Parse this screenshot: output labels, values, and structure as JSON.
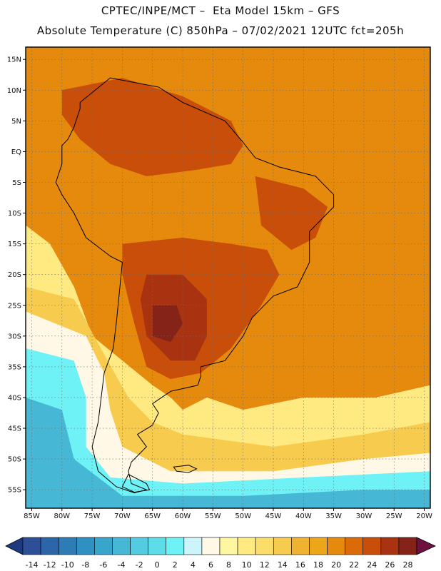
{
  "title_line1": "CPTEC/INPE/MCT –  Eta Model 15km – GFS",
  "title_line2": "Absolute Temperature (C) 850hPa – 07/02/2021 12UTC fct=205h",
  "map": {
    "lon_range": [
      -86,
      -19
    ],
    "lat_range": [
      -58,
      17
    ],
    "lat_ticks": [
      {
        "value": 15,
        "label": "15N"
      },
      {
        "value": 10,
        "label": "10N"
      },
      {
        "value": 5,
        "label": "5N"
      },
      {
        "value": 0,
        "label": "EQ"
      },
      {
        "value": -5,
        "label": "5S"
      },
      {
        "value": -10,
        "label": "10S"
      },
      {
        "value": -15,
        "label": "15S"
      },
      {
        "value": -20,
        "label": "20S"
      },
      {
        "value": -25,
        "label": "25S"
      },
      {
        "value": -30,
        "label": "30S"
      },
      {
        "value": -35,
        "label": "35S"
      },
      {
        "value": -40,
        "label": "40S"
      },
      {
        "value": -45,
        "label": "45S"
      },
      {
        "value": -50,
        "label": "50S"
      },
      {
        "value": -55,
        "label": "55S"
      }
    ],
    "lon_ticks": [
      {
        "value": -85,
        "label": "85W"
      },
      {
        "value": -80,
        "label": "80W"
      },
      {
        "value": -75,
        "label": "75W"
      },
      {
        "value": -70,
        "label": "70W"
      },
      {
        "value": -65,
        "label": "65W"
      },
      {
        "value": -60,
        "label": "60W"
      },
      {
        "value": -55,
        "label": "55W"
      },
      {
        "value": -50,
        "label": "50W"
      },
      {
        "value": -45,
        "label": "45W"
      },
      {
        "value": -40,
        "label": "40W"
      },
      {
        "value": -35,
        "label": "35W"
      },
      {
        "value": -30,
        "label": "30W"
      },
      {
        "value": -25,
        "label": "25W"
      },
      {
        "value": -20,
        "label": "20W"
      }
    ],
    "field_regions": [
      {
        "name": "sea-22-24",
        "value": 20,
        "points": [
          [
            -86,
            17
          ],
          [
            -19,
            17
          ],
          [
            -19,
            -38
          ],
          [
            -28,
            -40
          ],
          [
            -40,
            -40
          ],
          [
            -50,
            -42
          ],
          [
            -56,
            -40
          ],
          [
            -60,
            -42
          ],
          [
            -62,
            -40
          ],
          [
            -65,
            -38
          ],
          [
            -70,
            -34
          ],
          [
            -75,
            -30
          ],
          [
            -78,
            -22
          ],
          [
            -82,
            -15
          ],
          [
            -86,
            -12
          ]
        ]
      },
      {
        "name": "north-warm",
        "value": 24,
        "points": [
          [
            -80,
            10
          ],
          [
            -70,
            12
          ],
          [
            -60,
            9
          ],
          [
            -52,
            5
          ],
          [
            -50,
            1
          ],
          [
            -52,
            -2
          ],
          [
            -58,
            -3
          ],
          [
            -66,
            -4
          ],
          [
            -72,
            -2
          ],
          [
            -77,
            2
          ],
          [
            -80,
            6
          ]
        ]
      },
      {
        "name": "east-hot",
        "value": 24,
        "points": [
          [
            -48,
            -4
          ],
          [
            -40,
            -6
          ],
          [
            -36,
            -9
          ],
          [
            -38,
            -14
          ],
          [
            -42,
            -16
          ],
          [
            -47,
            -12
          ]
        ]
      },
      {
        "name": "center-hot",
        "value": 24,
        "points": [
          [
            -70,
            -15
          ],
          [
            -60,
            -14
          ],
          [
            -52,
            -15
          ],
          [
            -46,
            -16
          ],
          [
            -44,
            -20
          ],
          [
            -47,
            -25
          ],
          [
            -52,
            -32
          ],
          [
            -57,
            -36
          ],
          [
            -62,
            -37
          ],
          [
            -66,
            -35
          ],
          [
            -68,
            -28
          ],
          [
            -70,
            -20
          ]
        ]
      },
      {
        "name": "chaco-very-hot",
        "value": 26,
        "points": [
          [
            -66,
            -20
          ],
          [
            -60,
            -20
          ],
          [
            -56,
            -24
          ],
          [
            -56,
            -30
          ],
          [
            -58,
            -34
          ],
          [
            -62,
            -34
          ],
          [
            -66,
            -30
          ],
          [
            -67,
            -24
          ]
        ]
      },
      {
        "name": "chaco-core",
        "value": 28,
        "points": [
          [
            -65,
            -25
          ],
          [
            -61,
            -25
          ],
          [
            -60,
            -28
          ],
          [
            -62,
            -31
          ],
          [
            -65,
            -30
          ]
        ]
      },
      {
        "name": "sea-cool-east",
        "value": 8,
        "points": [
          [
            -36,
            -42
          ],
          [
            -25,
            -40
          ],
          [
            -19,
            -40
          ],
          [
            -19,
            -47
          ],
          [
            -30,
            -47
          ],
          [
            -40,
            -45
          ]
        ]
      },
      {
        "name": "south-cool",
        "value": 10,
        "points": [
          [
            -86,
            -12
          ],
          [
            -82,
            -15
          ],
          [
            -78,
            -22
          ],
          [
            -75,
            -30
          ],
          [
            -70,
            -34
          ],
          [
            -65,
            -38
          ],
          [
            -62,
            -40
          ],
          [
            -60,
            -42
          ],
          [
            -56,
            -40
          ],
          [
            -50,
            -42
          ],
          [
            -40,
            -40
          ],
          [
            -28,
            -40
          ],
          [
            -19,
            -38
          ],
          [
            -19,
            -58
          ],
          [
            -86,
            -58
          ]
        ]
      },
      {
        "name": "cool-14",
        "value": 14,
        "points": [
          [
            -86,
            -22
          ],
          [
            -78,
            -24
          ],
          [
            -73,
            -33
          ],
          [
            -69,
            -40
          ],
          [
            -65,
            -44
          ],
          [
            -60,
            -46
          ],
          [
            -45,
            -48
          ],
          [
            -30,
            -46
          ],
          [
            -19,
            -44
          ],
          [
            -19,
            -58
          ],
          [
            -86,
            -58
          ]
        ]
      },
      {
        "name": "cold-6",
        "value": 6,
        "points": [
          [
            -86,
            -26
          ],
          [
            -76,
            -30
          ],
          [
            -73,
            -36
          ],
          [
            -72,
            -42
          ],
          [
            -70,
            -48
          ],
          [
            -62,
            -52
          ],
          [
            -45,
            -52
          ],
          [
            -30,
            -50
          ],
          [
            -19,
            -49
          ],
          [
            -19,
            -58
          ],
          [
            -86,
            -58
          ]
        ]
      },
      {
        "name": "cold-2",
        "value": 2,
        "points": [
          [
            -86,
            -32
          ],
          [
            -78,
            -34
          ],
          [
            -76,
            -40
          ],
          [
            -76,
            -48
          ],
          [
            -72,
            -53
          ],
          [
            -60,
            -54
          ],
          [
            -40,
            -53
          ],
          [
            -19,
            -52
          ],
          [
            -19,
            -58
          ],
          [
            -86,
            -58
          ]
        ]
      },
      {
        "name": "cold-minus2",
        "value": -4,
        "points": [
          [
            -86,
            -40
          ],
          [
            -80,
            -42
          ],
          [
            -78,
            -50
          ],
          [
            -70,
            -56
          ],
          [
            -50,
            -56
          ],
          [
            -30,
            -55
          ],
          [
            -19,
            -55
          ],
          [
            -19,
            -58
          ],
          [
            -86,
            -58
          ]
        ]
      }
    ],
    "coast_points": [
      [
        -77,
        8
      ],
      [
        -72,
        12
      ],
      [
        -64,
        10.5
      ],
      [
        -60,
        8
      ],
      [
        -53,
        5
      ],
      [
        -50,
        1.5
      ],
      [
        -48,
        -1
      ],
      [
        -44,
        -2.5
      ],
      [
        -38,
        -4
      ],
      [
        -35,
        -7
      ],
      [
        -35,
        -9
      ],
      [
        -39,
        -13
      ],
      [
        -39,
        -18
      ],
      [
        -41,
        -22
      ],
      [
        -45,
        -23.5
      ],
      [
        -48.5,
        -27
      ],
      [
        -50,
        -30
      ],
      [
        -53,
        -34
      ],
      [
        -57,
        -35
      ],
      [
        -57,
        -36.5
      ],
      [
        -57.5,
        -38
      ],
      [
        -62,
        -39
      ],
      [
        -65,
        -41
      ],
      [
        -64,
        -42.5
      ],
      [
        -65,
        -44.5
      ],
      [
        -67.5,
        -46
      ],
      [
        -66,
        -48
      ],
      [
        -68.5,
        -50.5
      ],
      [
        -69,
        -52
      ],
      [
        -68.5,
        -54
      ],
      [
        -66,
        -55
      ],
      [
        -68,
        -55.5
      ],
      [
        -71,
        -54.5
      ],
      [
        -74,
        -52
      ],
      [
        -75,
        -48
      ],
      [
        -74,
        -44
      ],
      [
        -73.5,
        -40
      ],
      [
        -73,
        -36
      ],
      [
        -71.5,
        -32
      ],
      [
        -71,
        -28
      ],
      [
        -70.5,
        -23
      ],
      [
        -70,
        -18
      ],
      [
        -72,
        -17
      ],
      [
        -76,
        -14
      ],
      [
        -78,
        -10
      ],
      [
        -80,
        -7
      ],
      [
        -81,
        -5
      ],
      [
        -80,
        -2
      ],
      [
        -80,
        1
      ],
      [
        -79,
        2
      ],
      [
        -78,
        4
      ],
      [
        -77,
        7
      ],
      [
        -77,
        8
      ]
    ],
    "islands": [
      {
        "name": "falklands",
        "points": [
          [
            -61.5,
            -51.3
          ],
          [
            -59,
            -51
          ],
          [
            -57.7,
            -51.6
          ],
          [
            -59,
            -52.2
          ],
          [
            -61,
            -52
          ]
        ]
      },
      {
        "name": "tierra-del-fuego",
        "points": [
          [
            -69,
            -52.5
          ],
          [
            -66,
            -54
          ],
          [
            -65.5,
            -55
          ],
          [
            -68,
            -55.4
          ],
          [
            -70,
            -54.5
          ]
        ]
      }
    ]
  },
  "colorbar": {
    "labels": [
      "-14",
      "-12",
      "-10",
      "-8",
      "-6",
      "-4",
      "-2",
      "0",
      "2",
      "4",
      "6",
      "8",
      "10",
      "12",
      "14",
      "16",
      "18",
      "20",
      "22",
      "24",
      "26",
      "28"
    ],
    "colors": [
      "#2d4f98",
      "#2c66a8",
      "#2d7cb5",
      "#3090c1",
      "#3aa5cb",
      "#46b8d5",
      "#53cbe0",
      "#5ddde8",
      "#6ef2f5",
      "#ccf5fb",
      "#fff8e6",
      "#fff6a2",
      "#feea80",
      "#fbdd6a",
      "#f7cb4e",
      "#f0b331",
      "#eda519",
      "#e58a0c",
      "#db6a09",
      "#c84e09",
      "#a93310",
      "#852318"
    ],
    "under_color": "#203a80",
    "over_color": "#6e1040"
  }
}
